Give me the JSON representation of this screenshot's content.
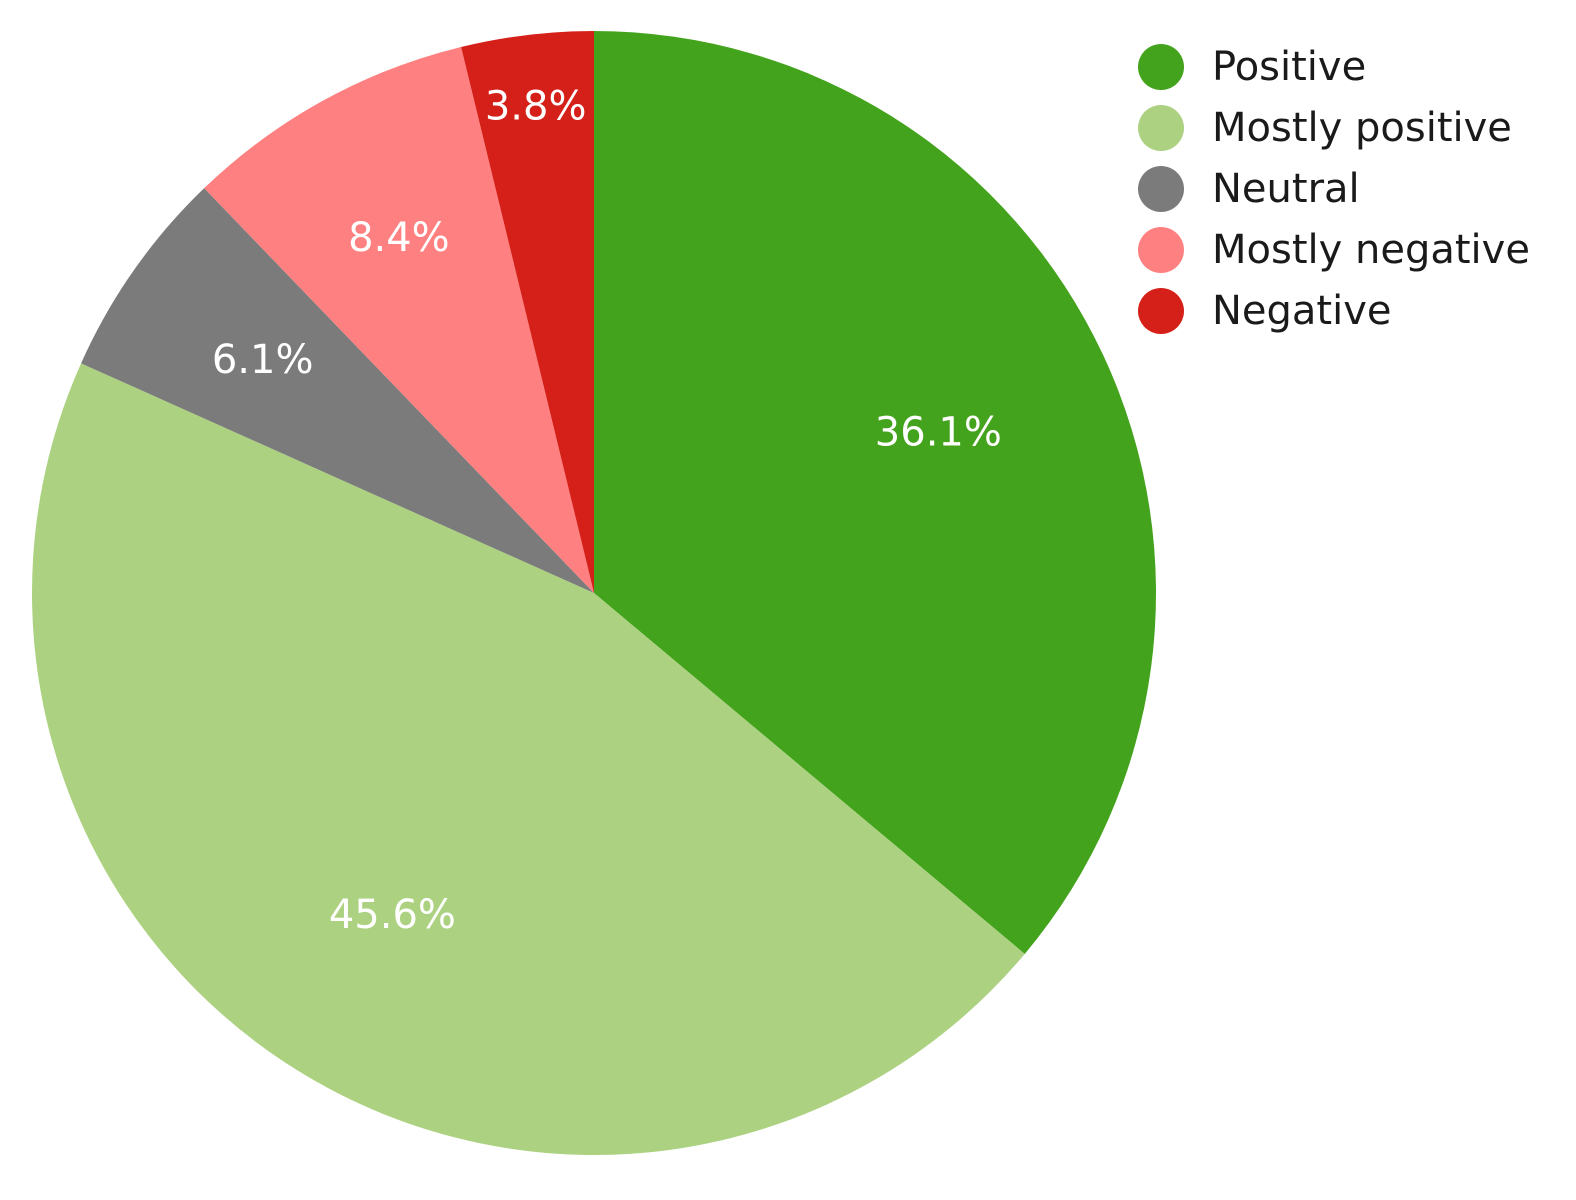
{
  "chart_data": {
    "type": "pie",
    "title": "",
    "legend_position": "top-right",
    "slices": [
      {
        "name": "Positive",
        "value": 36.1,
        "label": "36.1%",
        "color": "#44a31c"
      },
      {
        "name": "Mostly positive",
        "value": 45.6,
        "label": "45.6%",
        "color": "#acd281"
      },
      {
        "name": "Neutral",
        "value": 6.1,
        "label": "6.1%",
        "color": "#7b7b7b"
      },
      {
        "name": "Mostly negative",
        "value": 8.4,
        "label": "8.4%",
        "color": "#ff8080"
      },
      {
        "name": "Negative",
        "value": 3.8,
        "label": "3.8%",
        "color": "#d52019"
      }
    ]
  }
}
